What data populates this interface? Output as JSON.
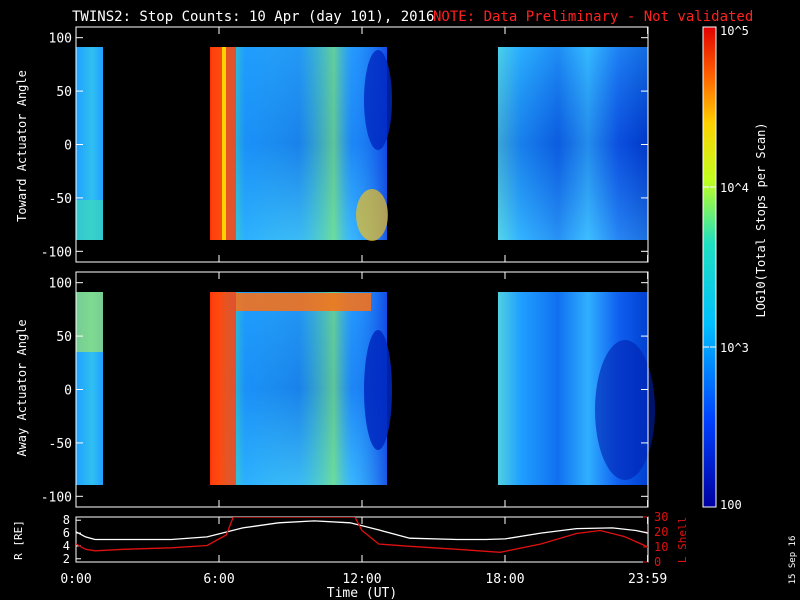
{
  "header": {
    "title": "TWINS2: Stop Counts: 10 Apr (day 101), 2016",
    "note": "NOTE: Data Preliminary - Not validated"
  },
  "colors": {
    "background": "#000000",
    "axes": "#ffffff",
    "note": "#ff2020",
    "r_line": "#ffffff",
    "lshell_line": "#e01010"
  },
  "colorbar": {
    "label": "LOG10(Total Stops per Scan)",
    "scale": "log",
    "range": [
      100,
      100000
    ],
    "ticks": [
      {
        "value": 100000,
        "label": "10^5"
      },
      {
        "value": 10000,
        "label": "10^4"
      },
      {
        "value": 1000,
        "label": "10^3"
      },
      {
        "value": 100,
        "label": "100"
      }
    ],
    "colormap": "rainbow (blue -> cyan -> green -> yellow -> red)"
  },
  "footer": {
    "date_stamp": "15 Sep 16"
  },
  "chart_data": [
    {
      "type": "heatmap",
      "title": "",
      "xlabel": "",
      "ylabel": "Toward Actuator Angle",
      "xlim": [
        0,
        24
      ],
      "ylim": [
        -110,
        110
      ],
      "yticks": [
        100,
        50,
        0,
        -50,
        -100
      ],
      "data_y_range": [
        -90,
        90
      ],
      "data_segments": [
        {
          "start": "0:00",
          "end": "0:40"
        },
        {
          "start": "5:30",
          "end": "13:00"
        },
        {
          "start": "17:45",
          "end": "23:59"
        }
      ],
      "legend": "none"
    },
    {
      "type": "heatmap",
      "title": "",
      "xlabel": "",
      "ylabel": "Away Actuator Angle",
      "xlim": [
        0,
        24
      ],
      "ylim": [
        -110,
        110
      ],
      "yticks": [
        100,
        50,
        0,
        -50,
        -100
      ],
      "data_y_range": [
        -90,
        90
      ],
      "data_segments": [
        {
          "start": "0:00",
          "end": "0:40"
        },
        {
          "start": "5:30",
          "end": "13:00"
        },
        {
          "start": "17:45",
          "end": "23:59"
        }
      ],
      "legend": "none"
    },
    {
      "type": "line",
      "title": "",
      "xlabel": "Time (UT)",
      "xticks": [
        "0:00",
        "6:00",
        "12:00",
        "18:00",
        "23:59"
      ],
      "xlim": [
        0,
        24
      ],
      "left_axis": {
        "label": "R [RE]",
        "ticks": [
          2,
          4,
          6,
          8
        ],
        "range": [
          1.5,
          8.5
        ]
      },
      "right_axis": {
        "label": "L Shell",
        "ticks": [
          0,
          10,
          20,
          30
        ],
        "range": [
          0,
          30
        ]
      },
      "series": [
        {
          "name": "R [RE]",
          "axis": "left",
          "x": [
            0,
            0.4,
            0.8,
            2,
            4,
            5.5,
            7,
            8.5,
            10,
            11.5,
            12.7,
            14,
            16,
            17.2,
            18,
            19.5,
            21,
            22.5,
            23.5,
            24
          ],
          "y": [
            6.2,
            5.4,
            5.0,
            5.0,
            5.0,
            5.4,
            6.8,
            7.6,
            7.9,
            7.6,
            6.5,
            5.2,
            5.0,
            5.0,
            5.1,
            6.0,
            6.7,
            6.8,
            6.4,
            6.0
          ]
        },
        {
          "name": "L Shell",
          "axis": "right",
          "x": [
            0,
            0.4,
            0.8,
            2,
            4,
            5.5,
            6.3,
            6.6,
            11.7,
            12.0,
            12.7,
            14,
            16,
            17.8,
            19.5,
            21,
            22,
            23,
            24
          ],
          "y": [
            12,
            8.5,
            7.5,
            8.5,
            9.5,
            11,
            18,
            30,
            30,
            21,
            12,
            10.5,
            8.5,
            6.5,
            12,
            19,
            21,
            17,
            10
          ]
        }
      ],
      "legend": "none"
    }
  ]
}
